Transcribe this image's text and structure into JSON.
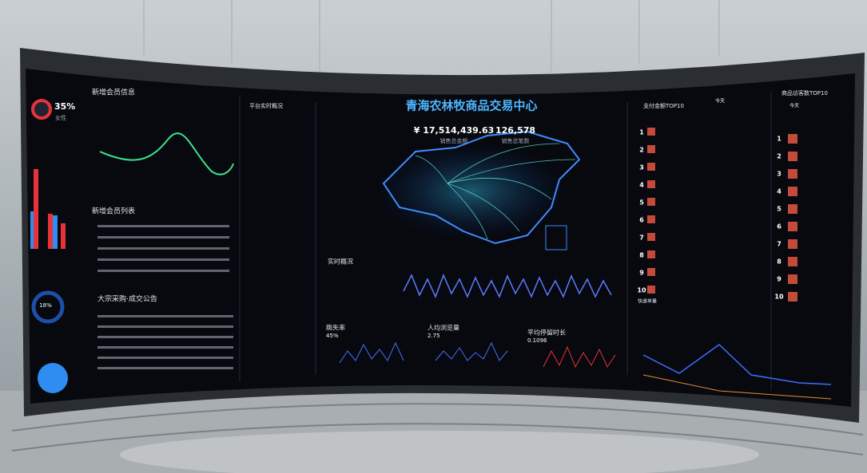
{
  "screen": {
    "title": "青海农林牧商品交易中心",
    "sales_amount": "¥ 17,514,439.63",
    "sales_amount_label": "销售总金额",
    "sales_count": "126,578",
    "sales_count_label": "销售总笔数",
    "left": {
      "member_info": "新增会员信息",
      "female_pct": "35%",
      "female_label": "女性",
      "member_list": "新增会员列表",
      "bulk_notice": "大宗采购·成交公告",
      "donut_pct": "18%"
    },
    "middle": {
      "platform": "平台实时概况",
      "realtime": "实时概况",
      "bounce": "跳失率",
      "bounce_value": "45%",
      "pv": "人均浏览量",
      "pv_value": "2.75",
      "stay": "平均停留时长",
      "stay_value": "0.1096"
    },
    "right": {
      "pay_top": "支付金额TOP10",
      "visitor_top": "商品访客数TOP10",
      "today": "今天",
      "express": "快递单量",
      "ranks": [
        "1",
        "2",
        "3",
        "4",
        "5",
        "6",
        "7",
        "8",
        "9",
        "10"
      ]
    }
  }
}
